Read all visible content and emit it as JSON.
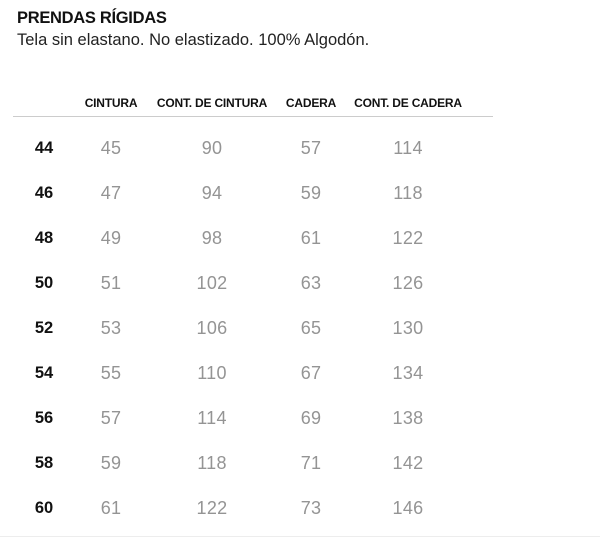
{
  "header": {
    "title": "PRENDAS RÍGIDAS",
    "subtitle": "Tela sin elastano. No elastizado. 100% Algodón."
  },
  "table": {
    "columns": [
      "CINTURA",
      "CONT. DE CINTURA",
      "CADERA",
      "CONT. DE CADERA"
    ],
    "rows": [
      {
        "size": "44",
        "values": [
          "45",
          "90",
          "57",
          "114"
        ]
      },
      {
        "size": "46",
        "values": [
          "47",
          "94",
          "59",
          "118"
        ]
      },
      {
        "size": "48",
        "values": [
          "49",
          "98",
          "61",
          "122"
        ]
      },
      {
        "size": "50",
        "values": [
          "51",
          "102",
          "63",
          "126"
        ]
      },
      {
        "size": "52",
        "values": [
          "53",
          "106",
          "65",
          "130"
        ]
      },
      {
        "size": "54",
        "values": [
          "55",
          "110",
          "67",
          "134"
        ]
      },
      {
        "size": "56",
        "values": [
          "57",
          "114",
          "69",
          "138"
        ]
      },
      {
        "size": "58",
        "values": [
          "59",
          "118",
          "71",
          "142"
        ]
      },
      {
        "size": "60",
        "values": [
          "61",
          "122",
          "73",
          "146"
        ]
      }
    ]
  },
  "colors": {
    "text_primary": "#111111",
    "text_secondary": "#949494",
    "divider": "#cccccc",
    "divider_faint": "#ededed",
    "background": "#ffffff"
  }
}
